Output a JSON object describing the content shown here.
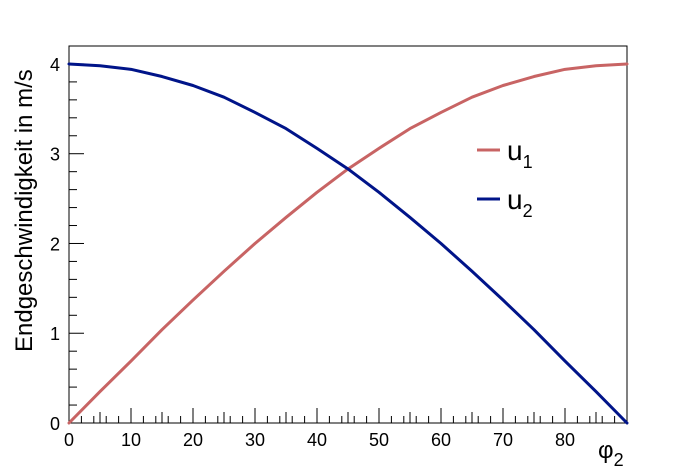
{
  "chart_data": {
    "type": "line",
    "xlabel": "φ",
    "xlabel_sub": "2",
    "ylabel": "Endgeschwindigkeit in m/s",
    "xlim": [
      0,
      90
    ],
    "ylim": [
      0,
      4.2
    ],
    "xticks": [
      0,
      10,
      20,
      30,
      40,
      50,
      60,
      70,
      80
    ],
    "yticks": [
      0,
      1,
      2,
      3,
      4
    ],
    "grid": false,
    "legend_position": "right",
    "x": [
      0,
      5,
      10,
      15,
      20,
      25,
      30,
      35,
      40,
      45,
      50,
      55,
      60,
      65,
      70,
      75,
      80,
      85,
      90
    ],
    "series": [
      {
        "name": "u",
        "name_sub": "1",
        "color": "#c86464",
        "values": [
          0.0,
          0.35,
          0.69,
          1.04,
          1.37,
          1.69,
          2.0,
          2.29,
          2.57,
          2.83,
          3.06,
          3.28,
          3.46,
          3.63,
          3.76,
          3.86,
          3.94,
          3.98,
          4.0
        ]
      },
      {
        "name": "u",
        "name_sub": "2",
        "color": "#001489",
        "values": [
          4.0,
          3.98,
          3.94,
          3.86,
          3.76,
          3.63,
          3.46,
          3.28,
          3.06,
          2.83,
          2.57,
          2.29,
          2.0,
          1.69,
          1.37,
          1.04,
          0.69,
          0.35,
          0.0
        ]
      }
    ]
  }
}
